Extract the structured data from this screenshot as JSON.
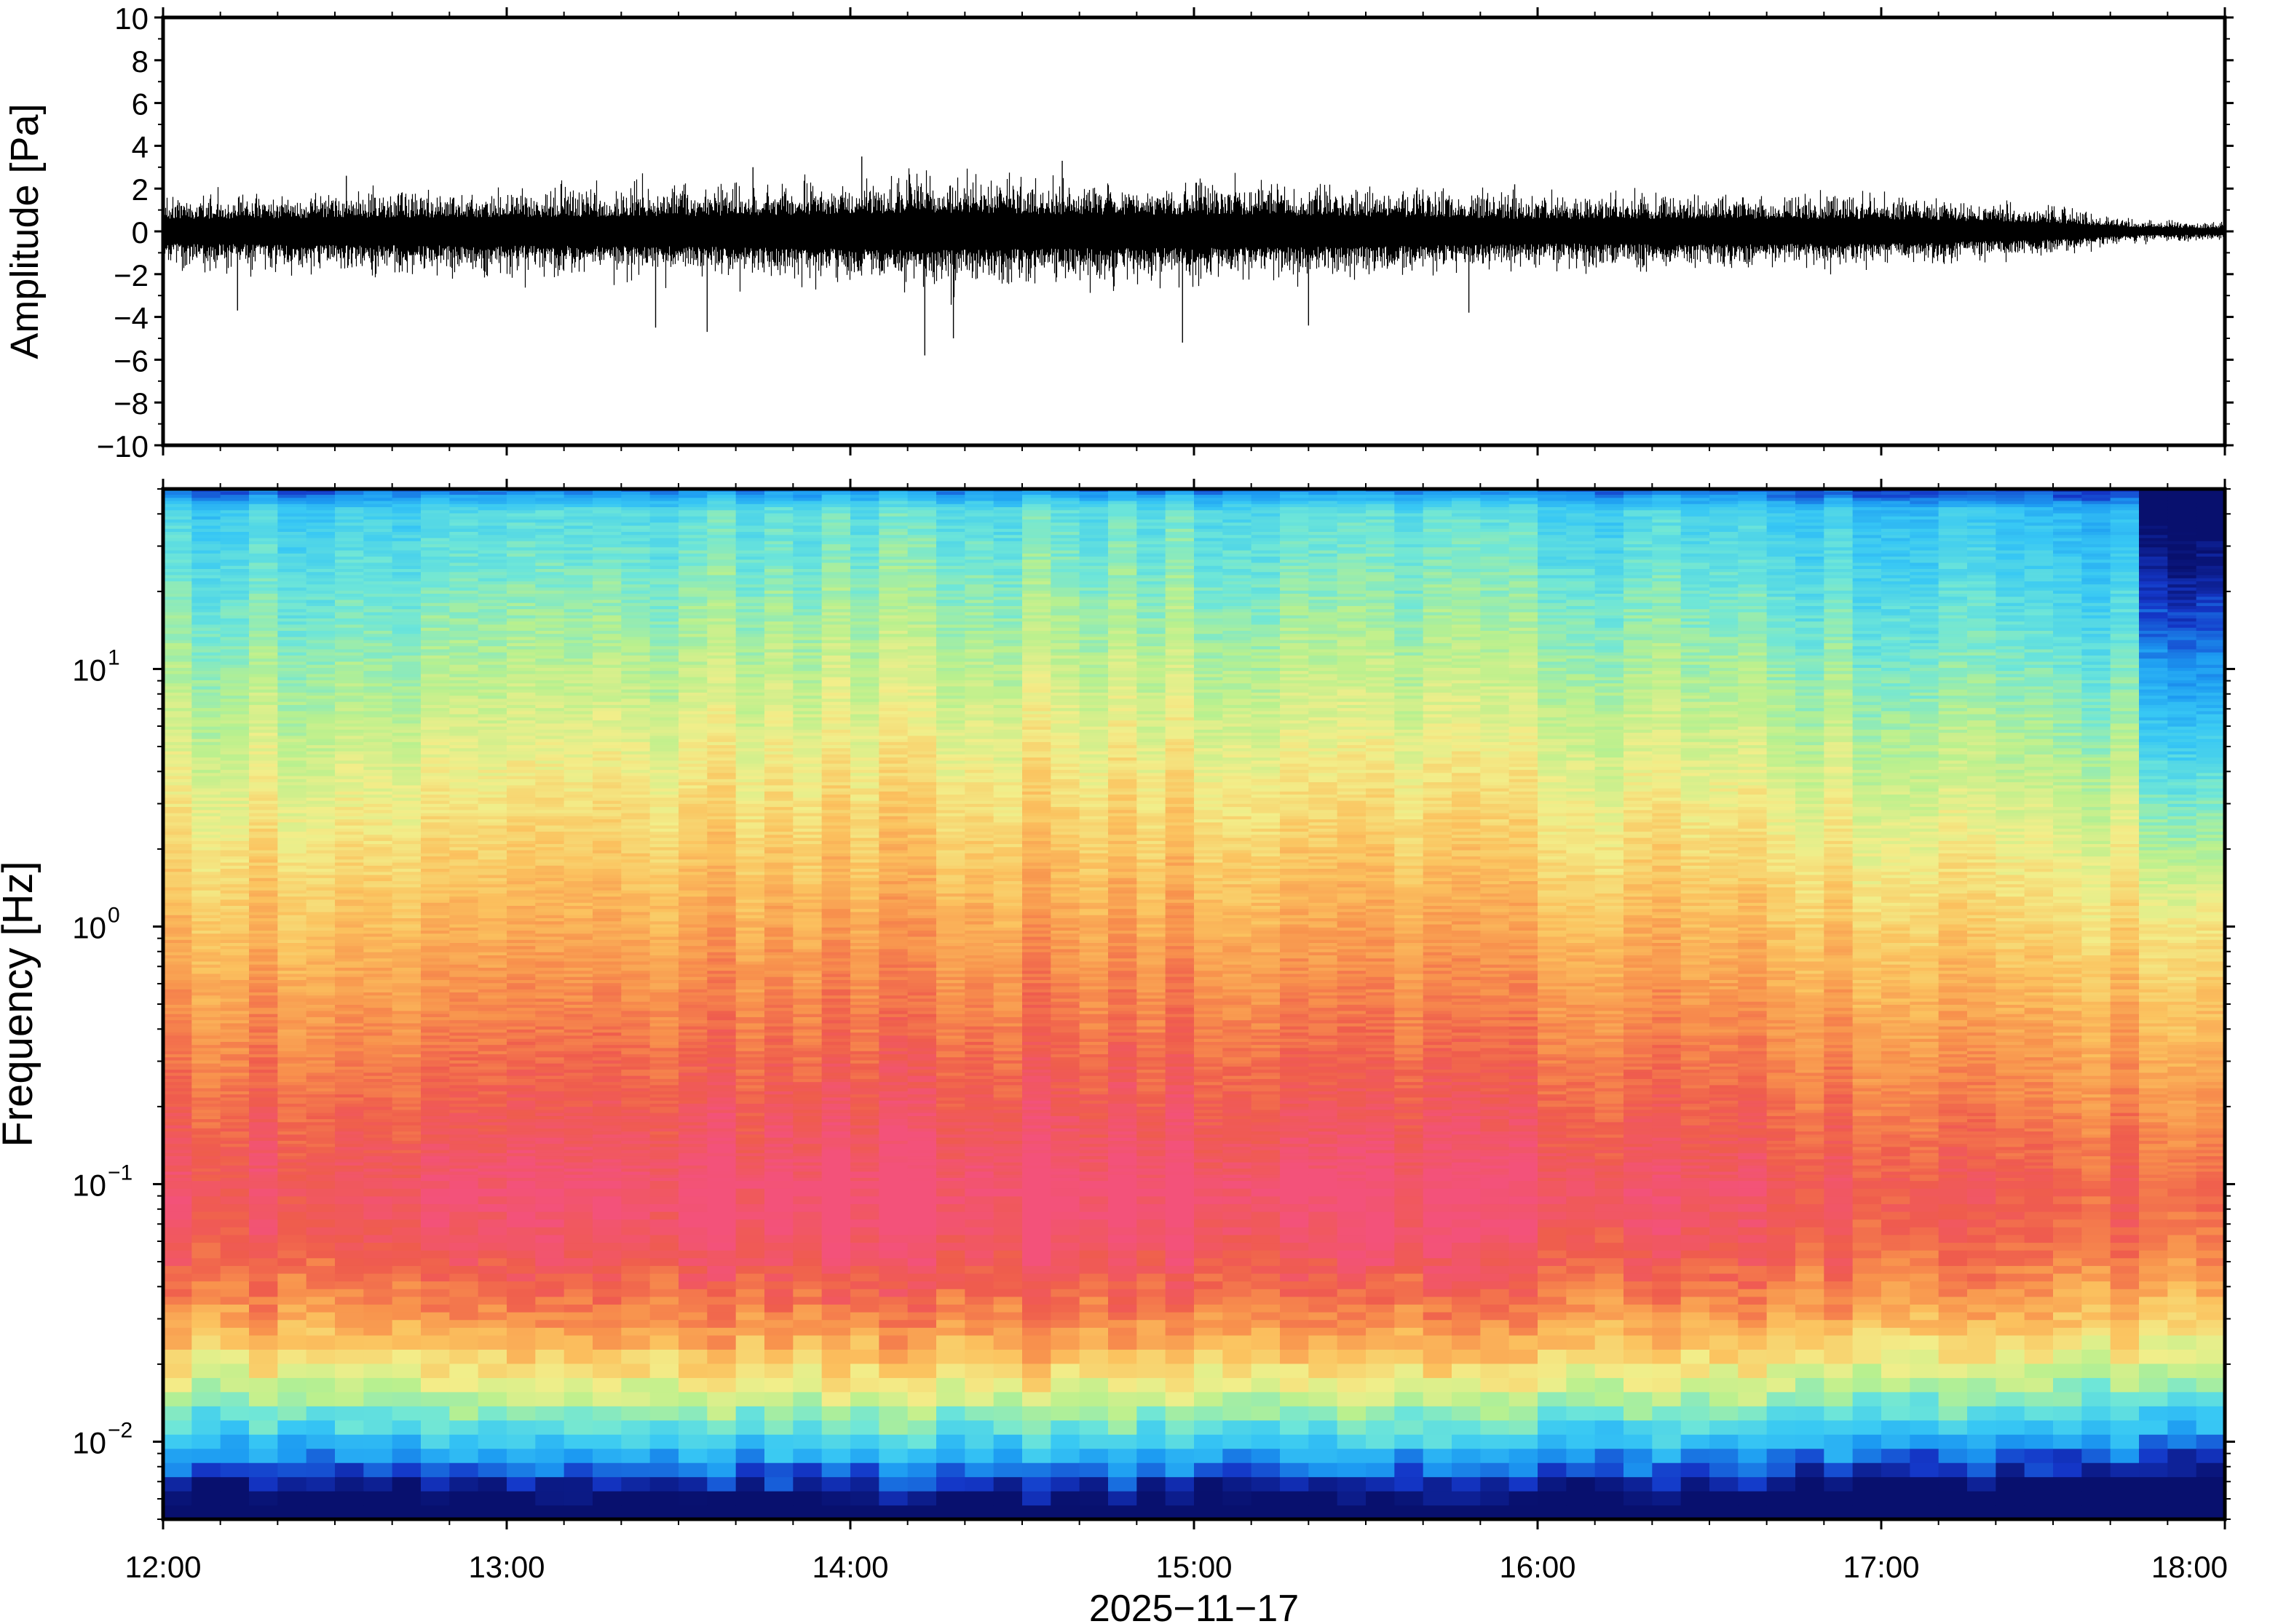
{
  "colors": {
    "frame": "#000000",
    "waveform": "#000000",
    "colormap": [
      "#08106e",
      "#1437c8",
      "#1c9af2",
      "#38c8f4",
      "#6ee6d8",
      "#b9f08e",
      "#f2ee8a",
      "#fbc35f",
      "#f8924d",
      "#ef5c4d",
      "#f3527a"
    ]
  },
  "chart_data": [
    {
      "type": "line",
      "title": "",
      "ylabel": "Amplitude [Pa]",
      "xlabel": "",
      "xlim": [
        "12:00",
        "18:00"
      ],
      "ylim": [
        -10,
        10
      ],
      "y_ticks": [
        "10",
        "8",
        "6",
        "4",
        "2",
        "0",
        "−2",
        "−4",
        "−6",
        "−8",
        "−10"
      ],
      "grid": false,
      "series": [
        {
          "envelope_hours": [
            12.0,
            12.5,
            13.0,
            13.5,
            14.0,
            14.25,
            14.5,
            15.0,
            15.5,
            16.0,
            16.5,
            17.0,
            17.5,
            17.75,
            18.0
          ],
          "envelope_pa": [
            1.6,
            1.8,
            1.9,
            2.0,
            2.3,
            2.5,
            2.3,
            2.2,
            2.0,
            1.6,
            1.7,
            1.6,
            1.1,
            0.5,
            0.4
          ],
          "peaks": [
            {
              "time": "12:13",
              "value": -3.7
            },
            {
              "time": "12:32",
              "value": 2.6
            },
            {
              "time": "13:26",
              "value": -4.5
            },
            {
              "time": "13:35",
              "value": -4.7
            },
            {
              "time": "13:43",
              "value": 3.0
            },
            {
              "time": "14:02",
              "value": 3.5
            },
            {
              "time": "14:13",
              "value": -5.8
            },
            {
              "time": "14:18",
              "value": -5.0
            },
            {
              "time": "14:37",
              "value": 3.3
            },
            {
              "time": "14:58",
              "value": -5.2
            },
            {
              "time": "15:20",
              "value": -4.4
            },
            {
              "time": "15:48",
              "value": -3.8
            },
            {
              "time": "15:56",
              "value": 2.2
            }
          ]
        }
      ]
    },
    {
      "type": "heatmap",
      "title": "",
      "ylabel": "Frequency [Hz]",
      "xlabel": "2025−11−17",
      "x_ticks": [
        "12:00",
        "13:00",
        "14:00",
        "15:00",
        "16:00",
        "17:00",
        "18:00"
      ],
      "y_ticks": [
        {
          "value": 10,
          "base": "10",
          "exp": "1"
        },
        {
          "value": 1,
          "base": "10",
          "exp": "0"
        },
        {
          "value": 0.1,
          "base": "10",
          "exp": "−1"
        },
        {
          "value": 0.01,
          "base": "10",
          "exp": "−2"
        }
      ],
      "y_scale": "log",
      "ylim": [
        0.005,
        50
      ],
      "colormap": "rainbow (navy → blue → cyan → yellow → orange → red)",
      "peak_power": {
        "frequency_hz": 0.1,
        "time_range": [
          "13:45",
          "15:15"
        ]
      },
      "columns": 72,
      "notes": [
        "Low power (blue) above ~20 Hz and below ~0.015 Hz",
        "Maximum (red/pink) near 0.05–0.2 Hz around 14:00–15:00",
        "Sharp drop in high-frequency power after 17:42"
      ]
    }
  ]
}
